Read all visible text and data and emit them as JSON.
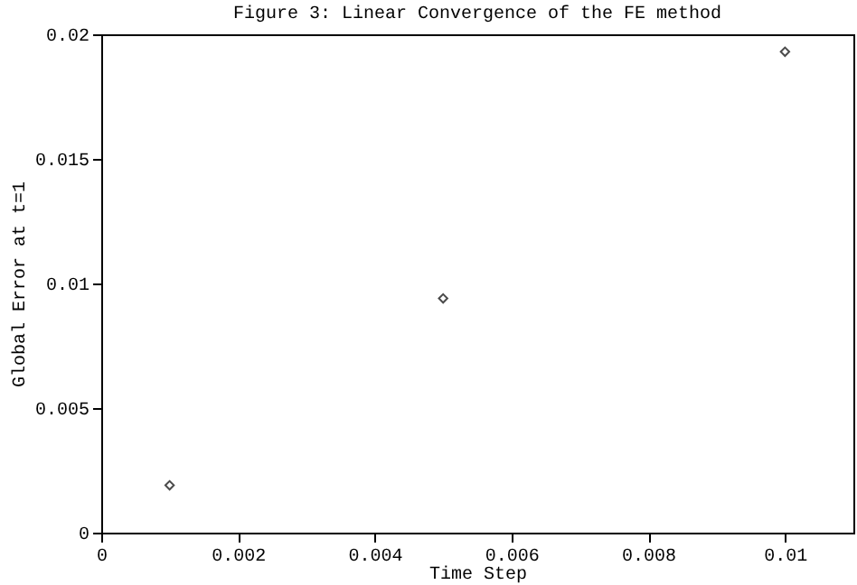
{
  "chart_data": {
    "type": "scatter",
    "title": "Figure 3: Linear Convergence of the FE method",
    "xlabel": "Time Step",
    "ylabel": "Global Error at t=1",
    "x": [
      0.001,
      0.005,
      0.01
    ],
    "series": [
      {
        "color": "#000000",
        "values": [
          0.0019,
          0.0094,
          0.0193
        ]
      }
    ],
    "marker": "diamond",
    "xlim": [
      0,
      0.011
    ],
    "ylim": [
      0,
      0.02
    ],
    "xticks": [
      0,
      0.002,
      0.004,
      0.006,
      0.008,
      0.01
    ],
    "yticks": [
      0,
      0.005,
      0.01,
      0.015,
      0.02
    ],
    "grid": false
  }
}
